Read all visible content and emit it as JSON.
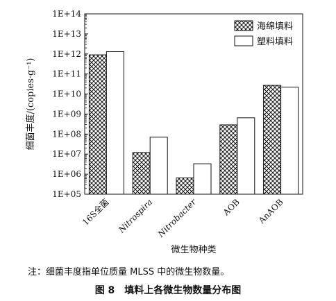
{
  "chart_data": {
    "type": "bar",
    "y_scale": "log",
    "ylim": [
      100000,
      100000000000000
    ],
    "ylabel": "细菌丰度/(copies·g⁻¹)",
    "xlabel": "微生物种类",
    "y_tick_labels": [
      "1E+05",
      "1E+06",
      "1E+07",
      "1E+08",
      "1E+09",
      "1E+10",
      "1E+11",
      "1E+12",
      "1E+13",
      "1E+14"
    ],
    "categories": [
      "16S全菌",
      "Nitrospira",
      "Nitrobacter",
      "AOB",
      "AnAOB"
    ],
    "category_italic": [
      false,
      true,
      true,
      false,
      false
    ],
    "series": [
      {
        "name": "海绵填料",
        "pattern": "crosshatch",
        "values": [
          900000000000,
          12000000,
          650000,
          290000000,
          27000000000
        ]
      },
      {
        "name": "塑料填料",
        "pattern": "white",
        "values": [
          1300000000000,
          70000000,
          3300000,
          650000000,
          22000000000
        ]
      }
    ],
    "legend_position": "top-right",
    "grid": false
  },
  "footnote": "注：细菌丰度指单位质量 MLSS 中的微生物数量。",
  "caption": "图 8　填料上各微生物数量分布图"
}
